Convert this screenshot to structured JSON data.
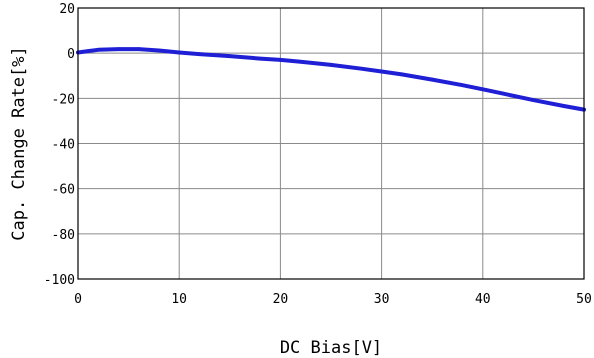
{
  "chart_data": {
    "type": "line",
    "title": "",
    "xlabel": "DC Bias[V]",
    "ylabel": "Cap. Change Rate[%]",
    "xlim": [
      0,
      50
    ],
    "ylim": [
      -100,
      20
    ],
    "x_ticks": [
      0,
      10,
      20,
      30,
      40,
      50
    ],
    "y_ticks": [
      20,
      0,
      -20,
      -40,
      -60,
      -80,
      -100
    ],
    "x_tick_labels": [
      "0",
      "10",
      "20",
      "30",
      "40",
      "50"
    ],
    "y_tick_labels": [
      "20",
      "0",
      "-20",
      "-40",
      "-60",
      "-80",
      "-100"
    ],
    "grid": true,
    "series": [
      {
        "color": "#1f1fd6",
        "x": [
          0,
          1,
          2,
          4,
          6,
          8,
          10,
          12,
          15,
          18,
          20,
          22,
          25,
          28,
          30,
          32,
          35,
          38,
          40,
          42,
          45,
          48,
          50
        ],
        "y": [
          0.3,
          0.9,
          1.5,
          1.8,
          1.8,
          1.2,
          0.3,
          -0.4,
          -1.3,
          -2.4,
          -3.0,
          -3.8,
          -5.2,
          -6.9,
          -8.1,
          -9.4,
          -11.7,
          -14.2,
          -16.0,
          -17.9,
          -20.8,
          -23.4,
          -25.0
        ]
      }
    ]
  }
}
